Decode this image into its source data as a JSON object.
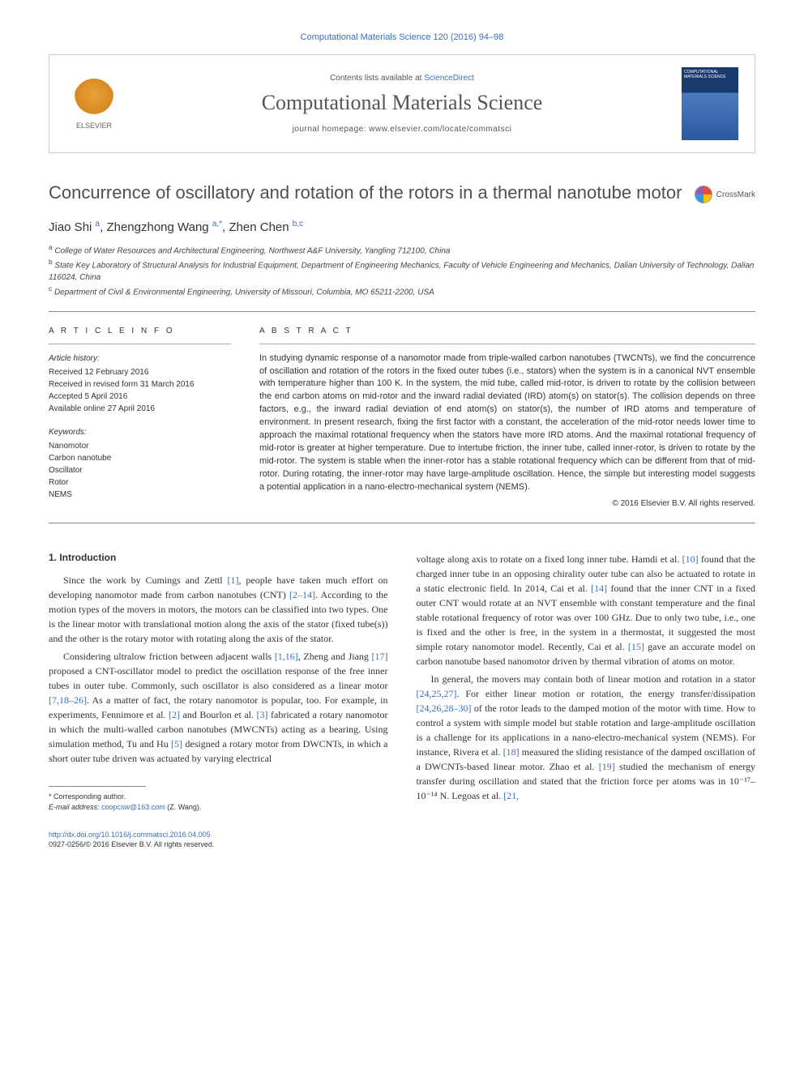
{
  "citation": "Computational Materials Science 120 (2016) 94–98",
  "header": {
    "contents_prefix": "Contents lists available at ",
    "contents_link": "ScienceDirect",
    "journal_name": "Computational Materials Science",
    "homepage_label": "journal homepage: www.elsevier.com/locate/commatsci",
    "publisher": "ELSEVIER",
    "cover_label": "COMPUTATIONAL MATERIALS SCIENCE"
  },
  "title": "Concurrence of oscillatory and rotation of the rotors in a thermal nanotube motor",
  "crossmark": "CrossMark",
  "authors_html": "Jiao Shi <sup>a</sup>, Zhengzhong Wang <sup>a,*</sup>, Zhen Chen <sup>b,c</sup>",
  "affiliations": [
    {
      "sup": "a",
      "text": "College of Water Resources and Architectural Engineering, Northwest A&F University, Yangling 712100, China"
    },
    {
      "sup": "b",
      "text": "State Key Laboratory of Structural Analysis for Industrial Equipment, Department of Engineering Mechanics, Faculty of Vehicle Engineering and Mechanics, Dalian University of Technology, Dalian 116024, China"
    },
    {
      "sup": "c",
      "text": "Department of Civil & Environmental Engineering, University of Missouri, Columbia, MO 65211-2200, USA"
    }
  ],
  "article_info": {
    "heading": "A R T I C L E   I N F O",
    "history_label": "Article history:",
    "history": [
      "Received 12 February 2016",
      "Received in revised form 31 March 2016",
      "Accepted 5 April 2016",
      "Available online 27 April 2016"
    ],
    "keywords_label": "Keywords:",
    "keywords": [
      "Nanomotor",
      "Carbon nanotube",
      "Oscillator",
      "Rotor",
      "NEMS"
    ]
  },
  "abstract": {
    "heading": "A B S T R A C T",
    "text": "In studying dynamic response of a nanomotor made from triple-walled carbon nanotubes (TWCNTs), we find the concurrence of oscillation and rotation of the rotors in the fixed outer tubes (i.e., stators) when the system is in a canonical NVT ensemble with temperature higher than 100 K. In the system, the mid tube, called mid-rotor, is driven to rotate by the collision between the end carbon atoms on mid-rotor and the inward radial deviated (IRD) atom(s) on stator(s). The collision depends on three factors, e.g., the inward radial deviation of end atom(s) on stator(s), the number of IRD atoms and temperature of environment. In present research, fixing the first factor with a constant, the acceleration of the mid-rotor needs lower time to approach the maximal rotational frequency when the stators have more IRD atoms. And the maximal rotational frequency of mid-rotor is greater at higher temperature. Due to intertube friction, the inner tube, called inner-rotor, is driven to rotate by the mid-rotor. The system is stable when the inner-rotor has a stable rotational frequency which can be different from that of mid-rotor. During rotating, the inner-rotor may have large-amplitude oscillation. Hence, the simple but interesting model suggests a potential application in a nano-electro-mechanical system (NEMS).",
    "copyright": "© 2016 Elsevier B.V. All rights reserved."
  },
  "body": {
    "section_heading": "1. Introduction",
    "left_paragraphs": [
      "Since the work by Cumings and Zettl <a href='#'>[1]</a>, people have taken much effort on developing nanomotor made from carbon nanotubes (CNT) <a href='#'>[2–14]</a>. According to the motion types of the movers in motors, the motors can be classified into two types. One is the linear motor with translational motion along the axis of the stator (fixed tube(s)) and the other is the rotary motor with rotating along the axis of the stator.",
      "Considering ultralow friction between adjacent walls <a href='#'>[1,16]</a>, Zheng and Jiang <a href='#'>[17]</a> proposed a CNT-oscillator model to predict the oscillation response of the free inner tubes in outer tube. Commonly, such oscillator is also considered as a linear motor <a href='#'>[7,18–26]</a>. As a matter of fact, the rotary nanomotor is popular, too. For example, in experiments, Fennimore et al. <a href='#'>[2]</a> and Bourlon et al. <a href='#'>[3]</a> fabricated a rotary nanomotor in which the multi-walled carbon nanotubes (MWCNTs) acting as a bearing. Using simulation method, Tu and Hu <a href='#'>[5]</a> designed a rotary motor from DWCNTs, in which a short outer tube driven was actuated by varying electrical"
    ],
    "right_paragraphs": [
      "voltage along axis to rotate on a fixed long inner tube. Hamdi et al. <a href='#'>[10]</a> found that the charged inner tube in an opposing chirality outer tube can also be actuated to rotate in a static electronic field. In 2014, Cai et al. <a href='#'>[14]</a> found that the inner CNT in a fixed outer CNT would rotate at an NVT ensemble with constant temperature and the final stable rotational frequency of rotor was over 100 GHz. Due to only two tube, i.e., one is fixed and the other is free, in the system in a thermostat, it suggested the most simple rotary nanomotor model. Recently, Cai et al. <a href='#'>[15]</a> gave an accurate model on carbon nanotube based nanomotor driven by thermal vibration of atoms on motor.",
      "In general, the movers may contain both of linear motion and rotation in a stator <a href='#'>[24,25,27]</a>. For either linear motion or rotation, the energy transfer/dissipation <a href='#'>[24,26,28–30]</a> of the rotor leads to the damped motion of the motor with time. How to control a system with simple model but stable rotation and large-amplitude oscillation is a challenge for its applications in a nano-electro-mechanical system (NEMS). For instance, Rivera et al. <a href='#'>[18]</a> measured the sliding resistance of the damped oscillation of a DWCNTs-based linear motor. Zhao et al. <a href='#'>[19]</a> studied the mechanism of energy transfer during oscillation and stated that the friction force per atoms was in 10⁻¹⁷–10⁻¹⁴ N. Legoas et al. <a href='#'>[21,"
    ]
  },
  "footnote": {
    "corresponding": "* Corresponding author.",
    "email_label": "E-mail address: ",
    "email": "coopcsw@163.com",
    "email_suffix": " (Z. Wang)."
  },
  "bottom": {
    "doi": "http://dx.doi.org/10.1016/j.commatsci.2016.04.005",
    "issn_line": "0927-0256/© 2016 Elsevier B.V. All rights reserved."
  },
  "colors": {
    "link": "#3b6fb6",
    "text": "#333333",
    "heading_gray": "#505050",
    "border": "#cccccc"
  }
}
